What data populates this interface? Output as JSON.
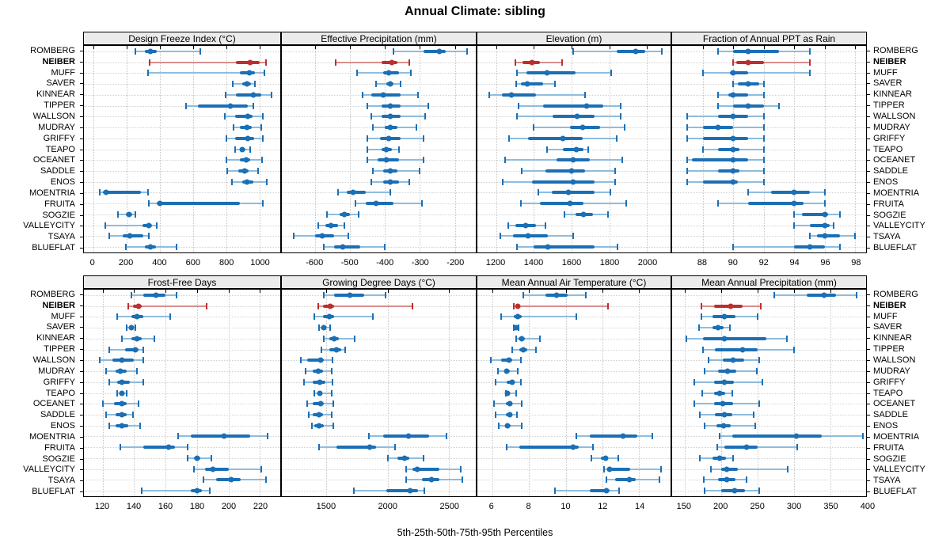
{
  "title": "Annual Climate: sibling",
  "footer": "5th-25th-50th-75th-95th Percentiles",
  "chart_data": {
    "type": "trellis-dotplot",
    "subtype": "percentile-ranges",
    "percentiles": [
      "5th",
      "25th",
      "50th",
      "75th",
      "95th"
    ],
    "layout": {
      "rows": 2,
      "cols": 4,
      "grid": "dotted",
      "legend": "none",
      "y_labels": "both-sides",
      "highlight_style": "bold-red"
    },
    "colors": {
      "series": "#1b6fb5",
      "series_light": "#8fbcdd",
      "highlight": "#bf2e2e",
      "highlight_light": "#d98e8c",
      "strip_bg": "#ebebeb",
      "grid": "#c8c8c8"
    },
    "stations": [
      "ROMBERG",
      "NEIBER",
      "MUFF",
      "SAVER",
      "KINNEAR",
      "TIPPER",
      "WALLSON",
      "MUDRAY",
      "GRIFFY",
      "TEAPO",
      "OCEANET",
      "SADDLE",
      "ENOS",
      "MOENTRIA",
      "FRUITA",
      "SOGZIE",
      "VALLEYCITY",
      "TSAYA",
      "BLUEFLAT"
    ],
    "highlight_station": "NEIBER",
    "panels": [
      {
        "title": "Design Freeze Index (°C)",
        "xlim": [
          -55,
          1125
        ],
        "ticks": [
          0,
          200,
          400,
          600,
          800,
          1000
        ],
        "values": [
          [
            255,
            310,
            345,
            385,
            645
          ],
          [
            340,
            860,
            945,
            1000,
            1040
          ],
          [
            330,
            880,
            940,
            975,
            1030
          ],
          [
            840,
            895,
            925,
            950,
            975
          ],
          [
            795,
            860,
            965,
            1010,
            1075
          ],
          [
            560,
            630,
            825,
            930,
            965
          ],
          [
            790,
            855,
            930,
            960,
            1020
          ],
          [
            845,
            880,
            925,
            955,
            1010
          ],
          [
            800,
            855,
            930,
            970,
            1020
          ],
          [
            855,
            880,
            895,
            915,
            945
          ],
          [
            800,
            880,
            920,
            945,
            1015
          ],
          [
            805,
            875,
            910,
            935,
            990
          ],
          [
            835,
            895,
            925,
            965,
            1045
          ],
          [
            40,
            60,
            80,
            290,
            330
          ],
          [
            335,
            385,
            400,
            880,
            1020
          ],
          [
            150,
            195,
            215,
            235,
            255
          ],
          [
            75,
            295,
            335,
            355,
            385
          ],
          [
            95,
            180,
            220,
            300,
            335
          ],
          [
            195,
            310,
            345,
            380,
            500
          ]
        ]
      },
      {
        "title": "Effective Precipitation (mm)",
        "xlim": [
          -695,
          -140
        ],
        "ticks": [
          -600,
          -500,
          -400,
          -300,
          -200
        ],
        "values": [
          [
            -375,
            -290,
            -245,
            -225,
            -165
          ],
          [
            -540,
            -410,
            -380,
            -365,
            -330
          ],
          [
            -480,
            -405,
            -390,
            -360,
            -325
          ],
          [
            -425,
            -395,
            -385,
            -375,
            -355
          ],
          [
            -465,
            -440,
            -405,
            -355,
            -305
          ],
          [
            -450,
            -410,
            -385,
            -355,
            -275
          ],
          [
            -440,
            -410,
            -385,
            -355,
            -285
          ],
          [
            -435,
            -400,
            -385,
            -365,
            -310
          ],
          [
            -450,
            -415,
            -390,
            -355,
            -290
          ],
          [
            -450,
            -410,
            -395,
            -380,
            -360
          ],
          [
            -450,
            -420,
            -395,
            -360,
            -290
          ],
          [
            -435,
            -405,
            -385,
            -365,
            -300
          ],
          [
            -440,
            -405,
            -385,
            -360,
            -330
          ],
          [
            -535,
            -510,
            -490,
            -455,
            -385
          ],
          [
            -485,
            -455,
            -425,
            -375,
            -295
          ],
          [
            -565,
            -530,
            -515,
            -500,
            -475
          ],
          [
            -590,
            -570,
            -555,
            -535,
            -515
          ],
          [
            -660,
            -600,
            -580,
            -545,
            -505
          ],
          [
            -575,
            -545,
            -520,
            -470,
            -400
          ]
        ]
      },
      {
        "title": "Elevation (m)",
        "xlim": [
          1100,
          2125
        ],
        "ticks": [
          1200,
          1400,
          1600,
          1800,
          2000
        ],
        "values": [
          [
            1610,
            1840,
            1940,
            1990,
            2080
          ],
          [
            1300,
            1340,
            1390,
            1430,
            1550
          ],
          [
            1310,
            1360,
            1470,
            1620,
            1810
          ],
          [
            1305,
            1330,
            1365,
            1450,
            1510
          ],
          [
            1165,
            1230,
            1280,
            1410,
            1670
          ],
          [
            1320,
            1450,
            1680,
            1770,
            1860
          ],
          [
            1310,
            1500,
            1630,
            1720,
            1860
          ],
          [
            1400,
            1590,
            1660,
            1750,
            1880
          ],
          [
            1270,
            1370,
            1555,
            1660,
            1840
          ],
          [
            1470,
            1555,
            1625,
            1665,
            1690
          ],
          [
            1245,
            1520,
            1610,
            1695,
            1870
          ],
          [
            1335,
            1460,
            1600,
            1670,
            1830
          ],
          [
            1235,
            1390,
            1610,
            1720,
            1830
          ],
          [
            1425,
            1495,
            1585,
            1720,
            1805
          ],
          [
            1330,
            1430,
            1590,
            1665,
            1890
          ],
          [
            1560,
            1620,
            1665,
            1715,
            1795
          ],
          [
            1265,
            1300,
            1355,
            1410,
            1460
          ],
          [
            1220,
            1290,
            1370,
            1475,
            1610
          ],
          [
            1310,
            1400,
            1475,
            1720,
            1845
          ]
        ]
      },
      {
        "title": "Fraction of Annual PPT as Rain",
        "xlim": [
          86,
          98.7
        ],
        "ticks": [
          88,
          90,
          92,
          94,
          96,
          98
        ],
        "values": [
          [
            89,
            90,
            91,
            93,
            95
          ],
          [
            90,
            90.2,
            91,
            92,
            95
          ],
          [
            88,
            89.8,
            90,
            91,
            95
          ],
          [
            90,
            90.3,
            91,
            91.7,
            92
          ],
          [
            89,
            89.7,
            90,
            91,
            92
          ],
          [
            89,
            90,
            91,
            92,
            93
          ],
          [
            87,
            89,
            90,
            91,
            92
          ],
          [
            87,
            88,
            89,
            90,
            92
          ],
          [
            87,
            88,
            90,
            91,
            92
          ],
          [
            88,
            89,
            90,
            90.4,
            92
          ],
          [
            87,
            87.3,
            90,
            91,
            92
          ],
          [
            87,
            89,
            90,
            90.4,
            92
          ],
          [
            87,
            88,
            90,
            90.3,
            92
          ],
          [
            91,
            92.5,
            94,
            95,
            96
          ],
          [
            89,
            91,
            94,
            94.6,
            96
          ],
          [
            94,
            94.5,
            96,
            96.2,
            97
          ],
          [
            94,
            95,
            96,
            96.3,
            96.6
          ],
          [
            95,
            95.5,
            96,
            97,
            98
          ],
          [
            90,
            94,
            95,
            96,
            97
          ]
        ]
      },
      {
        "title": "Frost-Free Days",
        "xlim": [
          108,
          233
        ],
        "ticks": [
          120,
          140,
          160,
          180,
          200,
          220
        ],
        "values": [
          [
            138,
            146,
            154,
            160,
            167
          ],
          [
            136,
            139,
            143,
            145,
            186
          ],
          [
            129,
            138,
            142,
            146,
            163
          ],
          [
            135,
            137,
            138,
            139,
            141
          ],
          [
            132,
            138,
            142,
            145,
            153
          ],
          [
            124,
            134,
            141,
            143,
            146
          ],
          [
            118,
            126,
            132,
            140,
            146
          ],
          [
            122,
            128,
            131,
            135,
            142
          ],
          [
            124,
            129,
            132,
            137,
            146
          ],
          [
            129,
            131,
            132,
            133,
            135
          ],
          [
            120,
            127,
            132,
            135,
            143
          ],
          [
            122,
            128,
            132,
            135,
            139
          ],
          [
            124,
            128,
            132,
            136,
            144
          ],
          [
            168,
            176,
            197,
            214,
            225
          ],
          [
            131,
            146,
            162,
            166,
            174
          ],
          [
            174,
            178,
            180,
            182,
            189
          ],
          [
            178,
            185,
            190,
            200,
            221
          ],
          [
            184,
            192,
            202,
            208,
            224
          ],
          [
            145,
            176,
            180,
            183,
            188
          ]
        ]
      },
      {
        "title": "Growing Degree Days (°C)",
        "xlim": [
          1135,
          2720
        ],
        "ticks": [
          1500,
          2000,
          2500
        ],
        "values": [
          [
            1480,
            1560,
            1690,
            1810,
            1985
          ],
          [
            1430,
            1470,
            1530,
            1560,
            2200
          ],
          [
            1400,
            1470,
            1520,
            1560,
            1880
          ],
          [
            1440,
            1460,
            1475,
            1490,
            1530
          ],
          [
            1480,
            1520,
            1565,
            1600,
            1730
          ],
          [
            1460,
            1520,
            1580,
            1620,
            1650
          ],
          [
            1290,
            1340,
            1450,
            1480,
            1550
          ],
          [
            1330,
            1390,
            1435,
            1470,
            1545
          ],
          [
            1315,
            1390,
            1445,
            1490,
            1550
          ],
          [
            1400,
            1425,
            1445,
            1460,
            1540
          ],
          [
            1345,
            1390,
            1450,
            1480,
            1555
          ],
          [
            1355,
            1390,
            1440,
            1470,
            1540
          ],
          [
            1380,
            1400,
            1440,
            1475,
            1555
          ],
          [
            1845,
            1960,
            2170,
            2340,
            2480
          ],
          [
            1440,
            1580,
            1855,
            1905,
            2060
          ],
          [
            2000,
            2080,
            2135,
            2175,
            2290
          ],
          [
            2150,
            2200,
            2240,
            2420,
            2600
          ],
          [
            2150,
            2280,
            2360,
            2420,
            2610
          ],
          [
            1725,
            1990,
            2180,
            2250,
            2300
          ]
        ]
      },
      {
        "title": "Mean Annual Air Temperature (°C)",
        "xlim": [
          5.2,
          15.7
        ],
        "ticks": [
          6,
          8,
          10,
          12,
          14
        ],
        "values": [
          [
            7.7,
            8.9,
            9.5,
            10.1,
            11.1
          ],
          [
            7.2,
            7.3,
            7.4,
            7.5,
            12.3
          ],
          [
            6.5,
            7.2,
            7.4,
            7.6,
            10.6
          ],
          [
            7.2,
            7.25,
            7.3,
            7.35,
            7.45
          ],
          [
            7.3,
            7.45,
            7.6,
            7.8,
            8.6
          ],
          [
            7.1,
            7.5,
            7.7,
            7.9,
            8.4
          ],
          [
            5.95,
            6.5,
            6.9,
            7.1,
            7.55
          ],
          [
            6.3,
            6.65,
            6.8,
            6.95,
            7.4
          ],
          [
            6.2,
            6.8,
            7.1,
            7.2,
            7.55
          ],
          [
            6.75,
            6.8,
            6.85,
            6.95,
            7.3
          ],
          [
            6.1,
            6.75,
            6.95,
            7.1,
            7.6
          ],
          [
            6.2,
            6.75,
            6.95,
            7.1,
            7.35
          ],
          [
            6.35,
            6.75,
            6.85,
            7.0,
            7.6
          ],
          [
            10.6,
            11.3,
            13.1,
            13.9,
            14.7
          ],
          [
            6.8,
            7.5,
            10.4,
            10.7,
            11.5
          ],
          [
            11.4,
            11.9,
            12.15,
            12.3,
            12.85
          ],
          [
            12.1,
            12.25,
            12.4,
            13.5,
            15.2
          ],
          [
            12.2,
            12.7,
            13.45,
            13.8,
            15.1
          ],
          [
            9.4,
            11.3,
            12.2,
            12.4,
            12.9
          ]
        ]
      },
      {
        "title": "Mean Annual Precipitation (mm)",
        "xlim": [
          133,
          399
        ],
        "ticks": [
          150,
          200,
          250,
          300,
          350,
          400
        ],
        "values": [
          [
            273,
            318,
            341,
            358,
            386
          ],
          [
            173,
            190,
            213,
            230,
            255
          ],
          [
            173,
            188,
            205,
            220,
            250
          ],
          [
            170,
            188,
            196,
            204,
            212
          ],
          [
            153,
            175,
            205,
            262,
            290
          ],
          [
            175,
            192,
            230,
            250,
            300
          ],
          [
            183,
            202,
            217,
            232,
            252
          ],
          [
            178,
            196,
            209,
            221,
            249
          ],
          [
            163,
            190,
            205,
            218,
            257
          ],
          [
            174,
            190,
            198,
            206,
            215
          ],
          [
            163,
            190,
            202,
            217,
            252
          ],
          [
            171,
            192,
            205,
            215,
            245
          ],
          [
            178,
            194,
            204,
            213,
            247
          ],
          [
            198,
            215,
            303,
            338,
            395
          ],
          [
            195,
            205,
            235,
            250,
            305
          ],
          [
            171,
            188,
            198,
            207,
            217
          ],
          [
            186,
            200,
            208,
            223,
            291
          ],
          [
            176,
            196,
            208,
            220,
            235
          ],
          [
            178,
            200,
            219,
            233,
            252
          ]
        ]
      }
    ]
  }
}
